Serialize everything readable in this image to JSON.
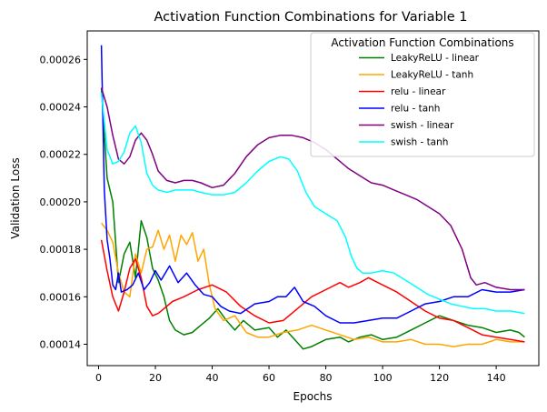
{
  "chart_data": {
    "type": "line",
    "title": "Activation Function Combinations for Variable 1",
    "xlabel": "Epochs",
    "ylabel": "Validation Loss",
    "xlim": [
      -4,
      155
    ],
    "ylim": [
      0.000131,
      0.000272
    ],
    "x_ticks": [
      0,
      20,
      40,
      60,
      80,
      100,
      120,
      140
    ],
    "x_tick_labels": [
      "0",
      "20",
      "40",
      "60",
      "80",
      "100",
      "120",
      "140"
    ],
    "y_ticks": [
      0.00014,
      0.00016,
      0.00018,
      0.0002,
      0.00022,
      0.00024,
      0.00026
    ],
    "y_tick_labels": [
      "0.00014",
      "0.00016",
      "0.00018",
      "0.00020",
      "0.00022",
      "0.00024",
      "0.00026"
    ],
    "grid": false,
    "legend": {
      "title": "Activation Function Combinations",
      "position": "top-right"
    },
    "series": [
      {
        "name": "LeakyReLU - linear",
        "color": "#008000",
        "x": [
          1,
          3,
          5,
          7,
          9,
          11,
          13,
          15,
          17,
          19,
          21,
          23,
          25,
          27,
          30,
          33,
          36,
          39,
          42,
          45,
          48,
          51,
          55,
          60,
          63,
          66,
          69,
          72,
          75,
          80,
          85,
          88,
          92,
          96,
          100,
          105,
          110,
          115,
          120,
          125,
          130,
          135,
          140,
          145,
          148,
          150
        ],
        "y": [
          0.000248,
          0.00021,
          0.0002,
          0.000166,
          0.000178,
          0.000183,
          0.000168,
          0.000192,
          0.000185,
          0.000172,
          0.000167,
          0.00016,
          0.00015,
          0.000146,
          0.000144,
          0.000145,
          0.000148,
          0.000151,
          0.000155,
          0.00015,
          0.000146,
          0.00015,
          0.000146,
          0.000147,
          0.000143,
          0.000146,
          0.000142,
          0.000138,
          0.000139,
          0.000142,
          0.000143,
          0.000141,
          0.000143,
          0.000144,
          0.000142,
          0.000143,
          0.000146,
          0.000149,
          0.000152,
          0.00015,
          0.000148,
          0.000147,
          0.000145,
          0.000146,
          0.000145,
          0.000143
        ]
      },
      {
        "name": "LeakyReLU - tanh",
        "color": "#ffa500",
        "x": [
          1,
          3,
          5,
          7,
          9,
          11,
          13,
          15,
          17,
          19,
          21,
          23,
          25,
          27,
          29,
          31,
          33,
          35,
          37,
          39,
          41,
          44,
          48,
          52,
          56,
          60,
          65,
          70,
          75,
          80,
          85,
          90,
          95,
          100,
          105,
          110,
          115,
          120,
          125,
          130,
          135,
          140,
          145,
          150
        ],
        "y": [
          0.000191,
          0.000188,
          0.000183,
          0.00017,
          0.000162,
          0.00016,
          0.000178,
          0.00017,
          0.00018,
          0.000181,
          0.000188,
          0.00018,
          0.000186,
          0.000175,
          0.000186,
          0.000182,
          0.000187,
          0.000175,
          0.00018,
          0.000165,
          0.000155,
          0.00015,
          0.000152,
          0.000145,
          0.000143,
          0.000143,
          0.000145,
          0.000146,
          0.000148,
          0.000146,
          0.000144,
          0.000142,
          0.000143,
          0.000141,
          0.000141,
          0.000142,
          0.00014,
          0.00014,
          0.000139,
          0.00014,
          0.00014,
          0.000142,
          0.000141,
          0.000141
        ]
      },
      {
        "name": "relu - linear",
        "color": "#ff0000",
        "x": [
          1,
          3,
          5,
          7,
          9,
          11,
          13,
          15,
          17,
          19,
          21,
          23,
          26,
          30,
          35,
          40,
          45,
          50,
          55,
          60,
          65,
          70,
          75,
          80,
          85,
          88,
          92,
          95,
          100,
          105,
          110,
          115,
          120,
          125,
          130,
          135,
          140,
          145,
          150
        ],
        "y": [
          0.000184,
          0.000171,
          0.00016,
          0.000154,
          0.000162,
          0.000172,
          0.000176,
          0.000168,
          0.000156,
          0.000152,
          0.000153,
          0.000155,
          0.000158,
          0.00016,
          0.000163,
          0.000165,
          0.000162,
          0.000156,
          0.000152,
          0.000149,
          0.00015,
          0.000155,
          0.00016,
          0.000163,
          0.000166,
          0.000164,
          0.000166,
          0.000168,
          0.000165,
          0.000162,
          0.000158,
          0.000154,
          0.000151,
          0.00015,
          0.000147,
          0.000144,
          0.000143,
          0.000142,
          0.000141
        ]
      },
      {
        "name": "relu - tanh",
        "color": "#0000ff",
        "x": [
          1,
          2,
          3,
          4,
          5,
          6,
          7,
          8,
          10,
          12,
          14,
          16,
          18,
          20,
          22,
          25,
          28,
          31,
          34,
          37,
          40,
          43,
          46,
          50,
          55,
          60,
          63,
          66,
          69,
          72,
          76,
          80,
          85,
          90,
          95,
          100,
          105,
          110,
          115,
          120,
          125,
          130,
          135,
          140,
          145,
          150
        ],
        "y": [
          0.000266,
          0.000205,
          0.000184,
          0.000176,
          0.000165,
          0.000163,
          0.00017,
          0.000162,
          0.000163,
          0.000165,
          0.00017,
          0.000163,
          0.000166,
          0.000171,
          0.000167,
          0.000173,
          0.000166,
          0.00017,
          0.000165,
          0.000161,
          0.00016,
          0.000156,
          0.000154,
          0.000153,
          0.000157,
          0.000158,
          0.00016,
          0.00016,
          0.000164,
          0.000158,
          0.000156,
          0.000152,
          0.000149,
          0.000149,
          0.00015,
          0.000151,
          0.000151,
          0.000154,
          0.000157,
          0.000158,
          0.00016,
          0.00016,
          0.000163,
          0.000162,
          0.000162,
          0.000163
        ]
      },
      {
        "name": "swish - linear",
        "color": "#800080",
        "x": [
          1,
          3,
          5,
          7,
          9,
          11,
          13,
          15,
          17,
          19,
          21,
          24,
          27,
          30,
          33,
          36,
          40,
          44,
          48,
          52,
          56,
          60,
          64,
          68,
          72,
          76,
          80,
          84,
          88,
          92,
          96,
          100,
          104,
          108,
          112,
          116,
          120,
          124,
          128,
          131,
          133,
          136,
          140,
          145,
          150
        ],
        "y": [
          0.000248,
          0.00024,
          0.000228,
          0.000218,
          0.000216,
          0.000219,
          0.000226,
          0.000229,
          0.000226,
          0.00022,
          0.000213,
          0.000209,
          0.000208,
          0.000209,
          0.000209,
          0.000208,
          0.000206,
          0.000207,
          0.000212,
          0.000219,
          0.000224,
          0.000227,
          0.000228,
          0.000228,
          0.000227,
          0.000225,
          0.000222,
          0.000218,
          0.000214,
          0.000211,
          0.000208,
          0.000207,
          0.000205,
          0.000203,
          0.000201,
          0.000198,
          0.000195,
          0.00019,
          0.00018,
          0.000168,
          0.000165,
          0.000166,
          0.000164,
          0.000163,
          0.000163
        ]
      },
      {
        "name": "swish - tanh",
        "color": "#00ffff",
        "x": [
          1,
          3,
          5,
          7,
          9,
          11,
          13,
          15,
          17,
          19,
          21,
          24,
          27,
          30,
          33,
          36,
          40,
          44,
          48,
          52,
          56,
          60,
          64,
          67,
          70,
          73,
          76,
          80,
          84,
          87,
          89,
          91,
          93,
          96,
          100,
          104,
          108,
          112,
          116,
          120,
          124,
          128,
          132,
          136,
          140,
          145,
          150
        ],
        "y": [
          0.000246,
          0.000222,
          0.000216,
          0.000217,
          0.000221,
          0.000229,
          0.000232,
          0.000225,
          0.000212,
          0.000207,
          0.000205,
          0.000204,
          0.000205,
          0.000205,
          0.000205,
          0.000204,
          0.000203,
          0.000203,
          0.000204,
          0.000208,
          0.000213,
          0.000217,
          0.000219,
          0.000218,
          0.000213,
          0.000204,
          0.000198,
          0.000195,
          0.000192,
          0.000185,
          0.000177,
          0.000172,
          0.00017,
          0.00017,
          0.000171,
          0.00017,
          0.000167,
          0.000164,
          0.000161,
          0.000159,
          0.000157,
          0.000156,
          0.000155,
          0.000155,
          0.000154,
          0.000154,
          0.000153
        ]
      }
    ]
  }
}
